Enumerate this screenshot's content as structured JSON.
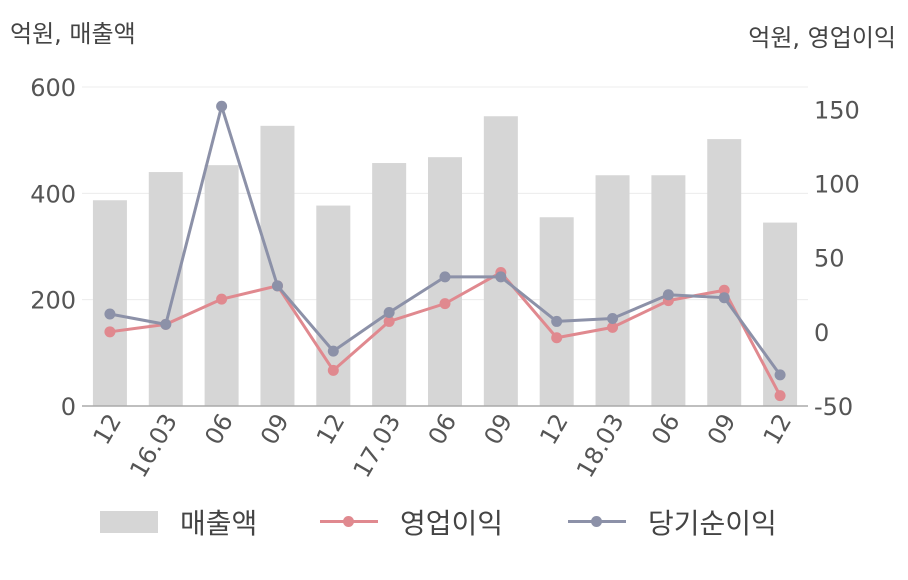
{
  "chart_data": {
    "type": "bar",
    "categories": [
      "12",
      "16.03",
      "06",
      "09",
      "12",
      "17.03",
      "06",
      "09",
      "12",
      "18.03",
      "06",
      "09",
      "12"
    ],
    "left_unit": "억원, 매출액",
    "right_unit": "억원, 영업이익",
    "y_left": {
      "min": 0,
      "max": 600,
      "ticks": [
        0,
        200,
        400,
        600
      ]
    },
    "y_right": {
      "min": -50,
      "max": 165,
      "ticks": [
        -50,
        0,
        50,
        100,
        150
      ]
    },
    "grid": true,
    "legend_position": "bottom",
    "series": [
      {
        "name": "매출액",
        "kind": "bar",
        "axis": "left",
        "color": "#d6d6d6",
        "values": [
          387,
          440,
          453,
          527,
          377,
          457,
          468,
          545,
          355,
          434,
          434,
          502,
          345
        ]
      },
      {
        "name": "영업이익",
        "kind": "line",
        "axis": "right",
        "color": "#e0898f",
        "values": [
          0,
          5,
          22,
          31,
          -26,
          7,
          19,
          40,
          -4,
          3,
          21,
          28,
          -43
        ]
      },
      {
        "name": "당기순이익",
        "kind": "line",
        "axis": "right",
        "color": "#8c91a8",
        "values": [
          12,
          5,
          152,
          31,
          -13,
          13,
          37,
          37,
          7,
          9,
          25,
          23,
          -29
        ]
      }
    ]
  }
}
